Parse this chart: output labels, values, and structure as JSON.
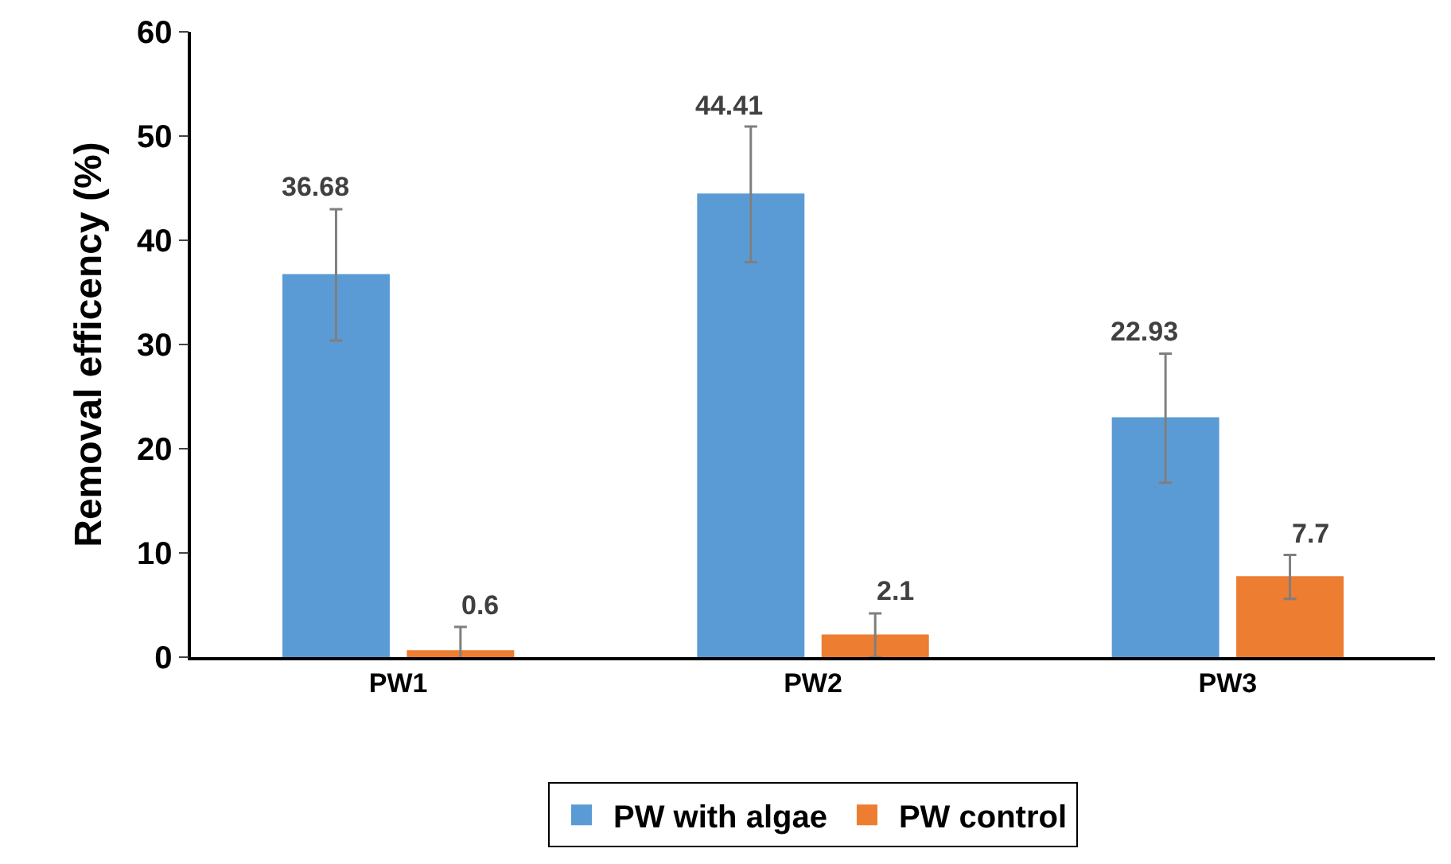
{
  "chart_data": {
    "type": "bar",
    "ylabel": "Removal efficency (%)",
    "categories": [
      "PW1",
      "PW2",
      "PW3"
    ],
    "series": [
      {
        "name": "PW with algae",
        "color": "#5b9bd5",
        "values": [
          36.68,
          44.41,
          22.93
        ],
        "errors": [
          6.3,
          6.5,
          6.2
        ]
      },
      {
        "name": "PW control",
        "color": "#ed7d31",
        "values": [
          0.6,
          2.1,
          7.7
        ],
        "errors": [
          2.3,
          2.1,
          2.1
        ]
      }
    ],
    "ylim": [
      0,
      60
    ],
    "yticks": [
      0,
      10,
      20,
      30,
      40,
      50,
      60
    ],
    "grid": false,
    "legend": "bottom",
    "data_labels": true
  }
}
